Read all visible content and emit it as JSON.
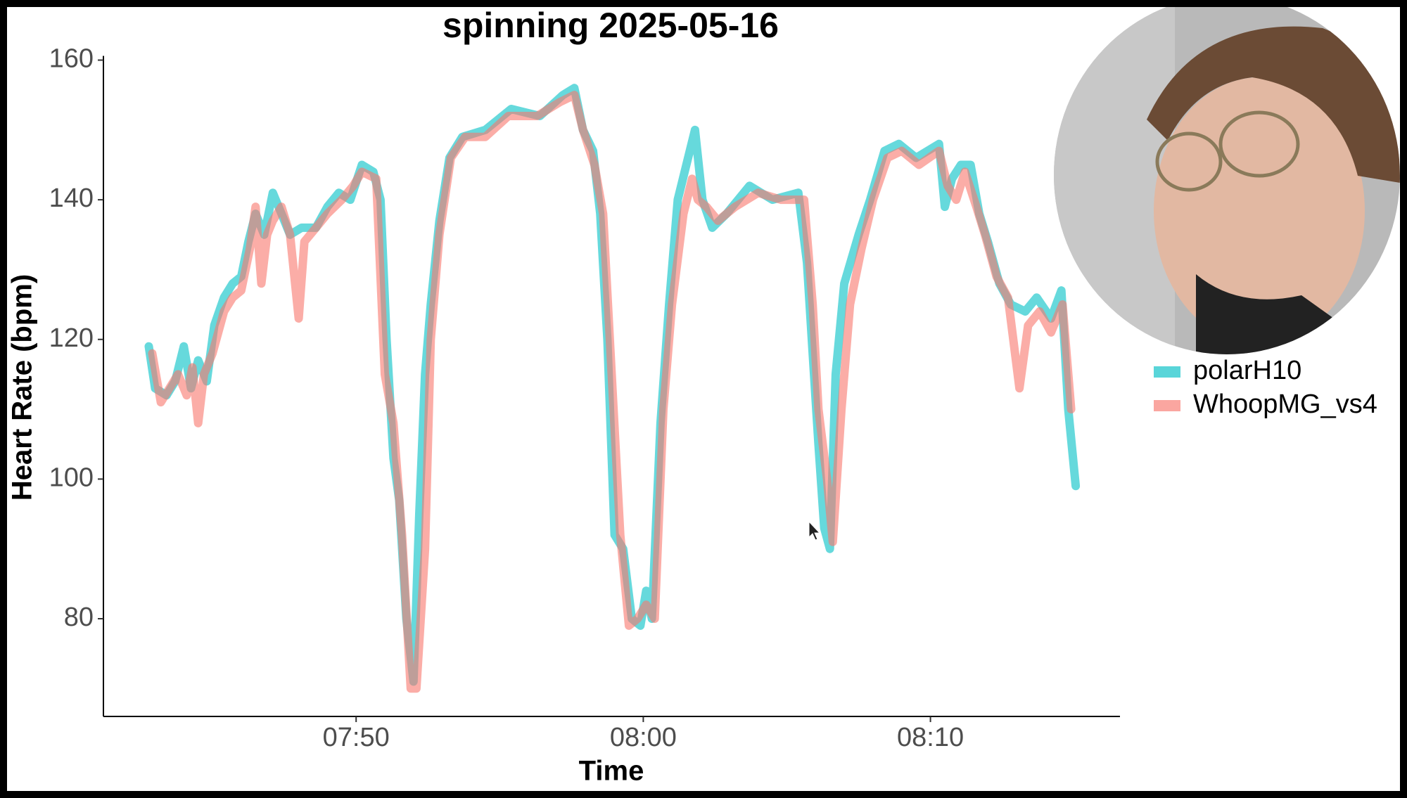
{
  "chart_data": {
    "type": "line",
    "title": "spinning 2025-05-16",
    "x_label": "Time",
    "y_label": "Heart Rate (bpm)",
    "xlim": [
      461.2,
      496.6
    ],
    "ylim": [
      66,
      160
    ],
    "xticks": [
      {
        "value": 470,
        "label": "07:50"
      },
      {
        "value": 480,
        "label": "08:00"
      },
      {
        "value": 490,
        "label": "08:10"
      }
    ],
    "yticks": [
      80,
      100,
      120,
      140,
      160
    ],
    "grid": false,
    "legend": "right",
    "series": [
      {
        "name": "polarH10",
        "color": "#00BFC4",
        "x": [
          462.78,
          463.0,
          463.4,
          463.7,
          464.0,
          464.25,
          464.5,
          464.8,
          465.06,
          465.4,
          465.7,
          466.0,
          466.25,
          466.5,
          466.8,
          467.1,
          467.4,
          467.7,
          468.1,
          468.6,
          469.0,
          469.4,
          469.8,
          470.2,
          470.6,
          470.85,
          471.06,
          471.3,
          471.5,
          471.75,
          472.0,
          472.2,
          472.4,
          472.6,
          472.9,
          473.25,
          473.7,
          474.5,
          475.4,
          476.4,
          477.2,
          477.6,
          477.9,
          478.25,
          478.5,
          478.75,
          479.0,
          479.3,
          479.6,
          479.9,
          480.1,
          480.3,
          480.6,
          480.9,
          481.2,
          481.5,
          481.8,
          482.06,
          482.4,
          482.9,
          483.7,
          484.5,
          485.4,
          485.7,
          485.9,
          486.1,
          486.3,
          486.5,
          486.7,
          487.0,
          487.5,
          487.9,
          488.4,
          488.9,
          489.5,
          490.3,
          490.5,
          490.75,
          491.06,
          491.4,
          491.7,
          492.0,
          492.4,
          492.8,
          493.3,
          493.7,
          494.2,
          494.56,
          494.8,
          495.06
        ],
        "values": [
          119,
          113,
          112,
          114,
          119,
          113,
          117,
          114,
          122,
          126,
          128,
          129,
          134,
          138,
          135,
          141,
          138,
          135,
          136,
          136,
          139,
          141,
          140,
          145,
          144,
          140,
          120,
          103,
          97,
          80,
          71,
          95,
          115,
          125,
          137,
          146,
          149,
          150,
          153,
          152,
          155,
          156,
          150,
          147,
          138,
          120,
          92,
          90,
          80,
          79,
          84,
          80,
          108,
          125,
          140,
          145,
          150,
          140,
          136,
          138,
          142,
          140,
          141,
          131,
          118,
          105,
          93,
          90,
          115,
          128,
          135,
          140,
          147,
          148,
          146,
          148,
          139,
          143,
          145,
          145,
          138,
          134,
          128,
          125,
          124,
          126,
          123,
          127,
          110,
          99
        ]
      },
      {
        "name": "WhoopMG_vs4",
        "color": "#F8766D",
        "x": [
          462.9,
          463.2,
          463.5,
          463.8,
          464.1,
          464.3,
          464.5,
          464.7,
          465.0,
          465.4,
          465.7,
          466.0,
          466.3,
          466.5,
          466.7,
          466.9,
          467.1,
          467.4,
          467.7,
          468.0,
          468.2,
          468.6,
          469.0,
          469.5,
          469.9,
          470.2,
          470.7,
          471.0,
          471.3,
          471.6,
          471.9,
          472.1,
          472.4,
          472.6,
          472.9,
          473.3,
          473.8,
          474.5,
          475.3,
          476.3,
          477.1,
          477.6,
          477.9,
          478.3,
          478.6,
          478.9,
          479.2,
          479.5,
          479.8,
          480.1,
          480.4,
          480.7,
          481.0,
          481.4,
          481.7,
          481.9,
          482.2,
          482.6,
          483.2,
          484.0,
          484.8,
          485.6,
          485.9,
          486.1,
          486.4,
          486.6,
          486.9,
          487.2,
          487.6,
          488.0,
          488.5,
          489.0,
          489.6,
          490.3,
          490.6,
          490.9,
          491.2,
          491.6,
          491.9,
          492.3,
          492.7,
          493.1,
          493.4,
          493.8,
          494.2,
          494.6,
          494.9
        ],
        "values": [
          118,
          111,
          113,
          115,
          112,
          116,
          108,
          115,
          118,
          124,
          126,
          127,
          133,
          139,
          128,
          135,
          137,
          139,
          135,
          123,
          134,
          136,
          138,
          140,
          142,
          144,
          143,
          115,
          108,
          92,
          70,
          70,
          90,
          120,
          135,
          146,
          149,
          149,
          152,
          152,
          154,
          155,
          150,
          145,
          138,
          115,
          92,
          79,
          80,
          82,
          80,
          110,
          125,
          138,
          143,
          140,
          139,
          137,
          139,
          141,
          140,
          140,
          125,
          110,
          100,
          91,
          110,
          125,
          133,
          140,
          146,
          147,
          145,
          147,
          142,
          140,
          144,
          139,
          135,
          129,
          126,
          113,
          122,
          124,
          121,
          125,
          110
        ]
      }
    ]
  }
}
